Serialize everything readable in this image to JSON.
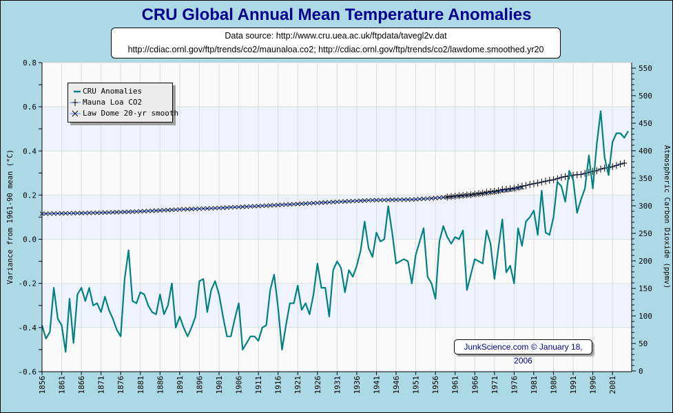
{
  "title": "CRU Global Annual Mean Temperature Anomalies",
  "source_lines": [
    "Data source: http://www.cru.uea.ac.uk/ftpdata/tavegl2v.dat",
    "http://cdiac.ornl.gov/ftp/trends/co2/maunaloa.co2; http://cdiac.ornl.gov/ftp/trends/co2/lawdome.smoothed.yr20"
  ],
  "credit": "JunkScience.com © January 18, 2006",
  "colors": {
    "background": "#add8e6",
    "cru": "#008080",
    "co2_line": "#4f7fff",
    "markers": "#000000",
    "band": "#eef3ff",
    "plot_bg": "#fafafa",
    "title": "#00008b"
  },
  "legend": {
    "placement": "top-left",
    "items": [
      {
        "label": "CRU Anomalies",
        "marker": "line"
      },
      {
        "label": "Mauna Loa CO2",
        "marker": "plus-icon"
      },
      {
        "label": "Law Dome 20-yr smooth",
        "marker": "cross-icon"
      }
    ]
  },
  "chart_data": {
    "type": "line",
    "title": "CRU Global Annual Mean Temperature Anomalies",
    "ylabel": "Variance from 1961-90 mean (°C)",
    "y2label": "Atmospheric Carbon Dioxide (ppmv)",
    "xlim": [
      1856,
      2005
    ],
    "ylim": [
      -0.6,
      0.8
    ],
    "y2lim": [
      0,
      550
    ],
    "grid": true,
    "xticks": [
      "1856",
      "1861",
      "1866",
      "1871",
      "1876",
      "1881",
      "1886",
      "1891",
      "1896",
      "1901",
      "1906",
      "1911",
      "1916",
      "1921",
      "1926",
      "1931",
      "1936",
      "1941",
      "1946",
      "1951",
      "1956",
      "1961",
      "1966",
      "1971",
      "1976",
      "1981",
      "1986",
      "1991",
      "1996",
      "2001"
    ],
    "yticks": [
      "0.8",
      "0.6",
      "0.4",
      "0.2",
      "0.0",
      "-0.2",
      "-0.4",
      "-0.6"
    ],
    "y2ticks": [
      "550",
      "500",
      "450",
      "400",
      "350",
      "300",
      "250",
      "200",
      "150",
      "100",
      "50",
      "0"
    ],
    "series": [
      {
        "name": "CRU Anomalies",
        "axis": "left",
        "x_start": 1856,
        "values": [
          -0.39,
          -0.45,
          -0.42,
          -0.22,
          -0.36,
          -0.39,
          -0.51,
          -0.27,
          -0.47,
          -0.25,
          -0.22,
          -0.28,
          -0.22,
          -0.3,
          -0.29,
          -0.33,
          -0.26,
          -0.32,
          -0.36,
          -0.41,
          -0.44,
          -0.18,
          -0.05,
          -0.28,
          -0.29,
          -0.24,
          -0.25,
          -0.3,
          -0.33,
          -0.34,
          -0.25,
          -0.34,
          -0.3,
          -0.2,
          -0.4,
          -0.35,
          -0.4,
          -0.44,
          -0.4,
          -0.35,
          -0.19,
          -0.18,
          -0.33,
          -0.23,
          -0.19,
          -0.25,
          -0.35,
          -0.44,
          -0.44,
          -0.36,
          -0.29,
          -0.5,
          -0.47,
          -0.44,
          -0.44,
          -0.46,
          -0.4,
          -0.39,
          -0.23,
          -0.16,
          -0.31,
          -0.5,
          -0.39,
          -0.29,
          -0.29,
          -0.21,
          -0.32,
          -0.29,
          -0.34,
          -0.25,
          -0.11,
          -0.22,
          -0.22,
          -0.35,
          -0.14,
          -0.1,
          -0.13,
          -0.24,
          -0.14,
          -0.17,
          -0.12,
          -0.05,
          0.08,
          -0.04,
          -0.08,
          0.03,
          -0.01,
          0.0,
          0.15,
          0.03,
          -0.11,
          -0.1,
          -0.09,
          -0.1,
          -0.2,
          -0.07,
          -0.01,
          0.05,
          -0.17,
          -0.2,
          -0.27,
          -0.01,
          0.06,
          0.01,
          -0.02,
          0.01,
          0.0,
          0.04,
          -0.23,
          -0.16,
          -0.09,
          -0.1,
          -0.11,
          0.04,
          -0.02,
          -0.18,
          -0.04,
          0.09,
          -0.15,
          -0.12,
          -0.2,
          0.05,
          -0.03,
          0.08,
          0.1,
          0.13,
          0.02,
          0.22,
          0.03,
          0.02,
          0.1,
          0.26,
          0.24,
          0.17,
          0.31,
          0.27,
          0.12,
          0.18,
          0.23,
          0.38,
          0.23,
          0.43,
          0.58,
          0.37,
          0.29,
          0.44,
          0.48,
          0.48,
          0.46,
          0.49
        ]
      },
      {
        "name": "Mauna Loa CO2",
        "axis": "right",
        "x_start": 1959,
        "values": [
          315.98,
          316.91,
          317.64,
          318.45,
          318.99,
          319.62,
          320.04,
          321.38,
          322.16,
          323.04,
          324.62,
          325.68,
          326.32,
          327.45,
          329.68,
          330.18,
          331.11,
          332.04,
          333.83,
          335.4,
          336.84,
          338.75,
          340.11,
          341.45,
          343.05,
          344.65,
          346.12,
          347.42,
          349.19,
          351.57,
          353.12,
          354.39,
          355.61,
          356.45,
          357.1,
          358.83,
          360.82,
          362.61,
          363.73,
          366.7,
          368.38,
          369.55,
          371.14,
          373.28,
          375.8,
          377.52
        ]
      },
      {
        "name": "Law Dome 20-yr smooth",
        "axis": "right",
        "x_start": 1856,
        "values": [
          285.6,
          285.7,
          285.8,
          286.0,
          286.1,
          286.2,
          286.3,
          286.4,
          286.6,
          286.7,
          286.8,
          286.9,
          287.1,
          287.2,
          287.3,
          287.5,
          287.7,
          288.0,
          288.2,
          288.4,
          288.6,
          288.8,
          289.1,
          289.3,
          289.5,
          289.9,
          290.2,
          290.6,
          290.9,
          291.3,
          291.6,
          292.0,
          292.3,
          292.7,
          293.0,
          293.3,
          293.6,
          293.8,
          294.1,
          294.4,
          294.7,
          295.0,
          295.2,
          295.5,
          295.8,
          296.1,
          296.5,
          296.8,
          297.2,
          297.5,
          297.8,
          298.2,
          298.5,
          298.9,
          299.2,
          299.6,
          300.0,
          300.3,
          300.7,
          301.1,
          301.5,
          301.9,
          302.2,
          302.6,
          303.0,
          303.4,
          303.8,
          304.1,
          304.5,
          304.9,
          305.3,
          305.7,
          306.0,
          306.4,
          306.8,
          307.2,
          307.5,
          307.9,
          308.2,
          308.6,
          308.9,
          309.3,
          309.6,
          310.0,
          310.3,
          310.4,
          310.5,
          310.6,
          310.7,
          310.9,
          311.0,
          311.1,
          311.2,
          311.3,
          311.4,
          311.8,
          312.2,
          312.7,
          313.1,
          313.5,
          314.1,
          314.6,
          315.2,
          315.7,
          316.3,
          317.0,
          317.7,
          318.4,
          319.1,
          319.8,
          320.7,
          321.6,
          322.4,
          323.3,
          324.2,
          325.2,
          326.2,
          327.2,
          328.2,
          329.2,
          330.6,
          332.0,
          333.4
        ]
      }
    ]
  }
}
